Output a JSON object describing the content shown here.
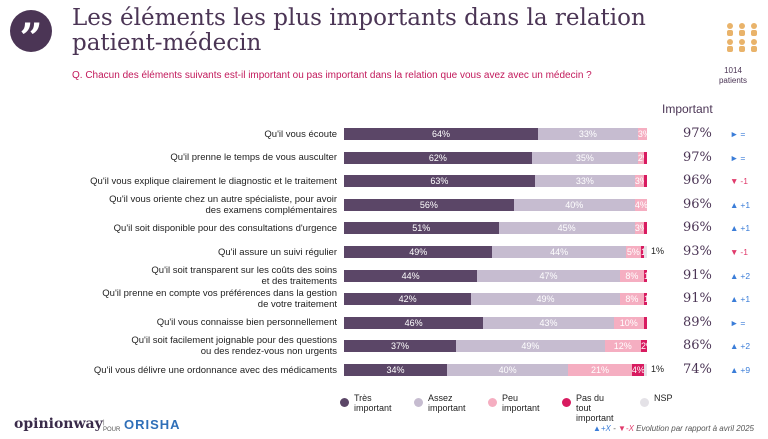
{
  "header": {
    "quote_symbol": "”",
    "title": "Les éléments les plus importants dans la relation patient-médecin",
    "question": "Q. Chacun des éléments suivants est-il important ou pas important dans la relation que vous avez avec un médecin ?",
    "panel_icon": "people-group-icon",
    "panel_count_line1": "1014",
    "panel_count_line2": "patients"
  },
  "colors": {
    "tres_important": "#5b4667",
    "assez_important": "#c6bcd0",
    "peu_important": "#f5aec1",
    "pas_du_tout": "#d81b60",
    "nsp": "#e4e2e7",
    "brand": "#4b3555",
    "up": "#3b7dd8",
    "down": "#e03a6b"
  },
  "important_header": "Important",
  "chart_data": {
    "type": "bar",
    "orientation": "horizontal",
    "stacked": true,
    "series_names": [
      "Très important",
      "Assez important",
      "Peu important",
      "Pas du tout important",
      "NSP"
    ],
    "rows": [
      {
        "label": [
          "Qu'il vous écoute"
        ],
        "values": [
          64,
          33,
          3,
          0,
          0
        ],
        "labels": [
          "64%",
          "33%",
          "3%",
          "",
          ""
        ],
        "important": "97%",
        "evo_dir": "eq",
        "evo_text": "="
      },
      {
        "label": [
          "Qu'il prenne le temps de vous ausculter"
        ],
        "values": [
          62,
          35,
          2,
          1,
          0
        ],
        "labels": [
          "62%",
          "35%",
          "2%",
          "",
          ""
        ],
        "important": "97%",
        "evo_dir": "eq",
        "evo_text": "="
      },
      {
        "label": [
          "Qu'il vous explique clairement le diagnostic et le traitement"
        ],
        "values": [
          63,
          33,
          3,
          1,
          0
        ],
        "labels": [
          "63%",
          "33%",
          "3%",
          "",
          ""
        ],
        "important": "96%",
        "evo_dir": "down",
        "evo_text": "-1"
      },
      {
        "label": [
          "Qu'il vous oriente chez un autre spécialiste, pour avoir",
          "des examens complémentaires"
        ],
        "values": [
          56,
          40,
          4,
          0,
          0
        ],
        "labels": [
          "56%",
          "40%",
          "4%",
          "",
          ""
        ],
        "important": "96%",
        "evo_dir": "up",
        "evo_text": "+1"
      },
      {
        "label": [
          "Qu'il soit disponible pour des consultations d'urgence"
        ],
        "values": [
          51,
          45,
          3,
          1,
          0
        ],
        "labels": [
          "51%",
          "45%",
          "3%",
          "",
          ""
        ],
        "important": "96%",
        "evo_dir": "up",
        "evo_text": "+1"
      },
      {
        "label": [
          "Qu'il assure un suivi régulier"
        ],
        "values": [
          49,
          44,
          5,
          1,
          1
        ],
        "labels": [
          "49%",
          "44%",
          "5%",
          "1%",
          ""
        ],
        "extra": "1%",
        "important": "93%",
        "evo_dir": "down",
        "evo_text": "-1"
      },
      {
        "label": [
          "Qu'il soit transparent sur les coûts des soins",
          "et des traitements"
        ],
        "values": [
          44,
          47,
          8,
          1,
          0
        ],
        "labels": [
          "44%",
          "47%",
          "8%",
          "1%",
          ""
        ],
        "important": "91%",
        "evo_dir": "up",
        "evo_text": "+2"
      },
      {
        "label": [
          "Qu'il prenne en compte vos préférences dans la gestion",
          "de votre traitement"
        ],
        "values": [
          42,
          49,
          8,
          1,
          0
        ],
        "labels": [
          "42%",
          "49%",
          "8%",
          "1%",
          ""
        ],
        "important": "91%",
        "evo_dir": "up",
        "evo_text": "+1"
      },
      {
        "label": [
          "Qu'il vous connaisse bien personnellement"
        ],
        "values": [
          46,
          43,
          10,
          1,
          0
        ],
        "labels": [
          "46%",
          "43%",
          "10%",
          "",
          ""
        ],
        "important": "89%",
        "evo_dir": "eq",
        "evo_text": "="
      },
      {
        "label": [
          "Qu'il soit facilement joignable pour des questions",
          "ou des rendez-vous non urgents"
        ],
        "values": [
          37,
          49,
          12,
          2,
          0
        ],
        "labels": [
          "37%",
          "49%",
          "12%",
          "2%",
          ""
        ],
        "important": "86%",
        "evo_dir": "up",
        "evo_text": "+2"
      },
      {
        "label": [
          "Qu'il vous délivre une ordonnance avec des médicaments"
        ],
        "values": [
          34,
          40,
          21,
          4,
          1
        ],
        "labels": [
          "34%",
          "40%",
          "21%",
          "4%",
          ""
        ],
        "extra": "1%",
        "important": "74%",
        "evo_dir": "up",
        "evo_text": "+9"
      }
    ]
  },
  "legend": [
    {
      "label": [
        "Très",
        "important"
      ],
      "color_key": "tres_important"
    },
    {
      "label": [
        "Assez",
        "important"
      ],
      "color_key": "assez_important"
    },
    {
      "label": [
        "Peu",
        "important"
      ],
      "color_key": "peu_important"
    },
    {
      "label": [
        "Pas du tout",
        "important"
      ],
      "color_key": "pas_du_tout"
    },
    {
      "label": [
        "NSP"
      ],
      "color_key": "nsp"
    }
  ],
  "footer": {
    "logo": "opinionway",
    "pour_line1": "|",
    "pour_line2": "POUR",
    "partner": "ORISHA",
    "note_up": "▲+X",
    "note_sep": " - ",
    "note_down": "▼-X",
    "note_text": " Evolution par rapport à avril 2025"
  }
}
